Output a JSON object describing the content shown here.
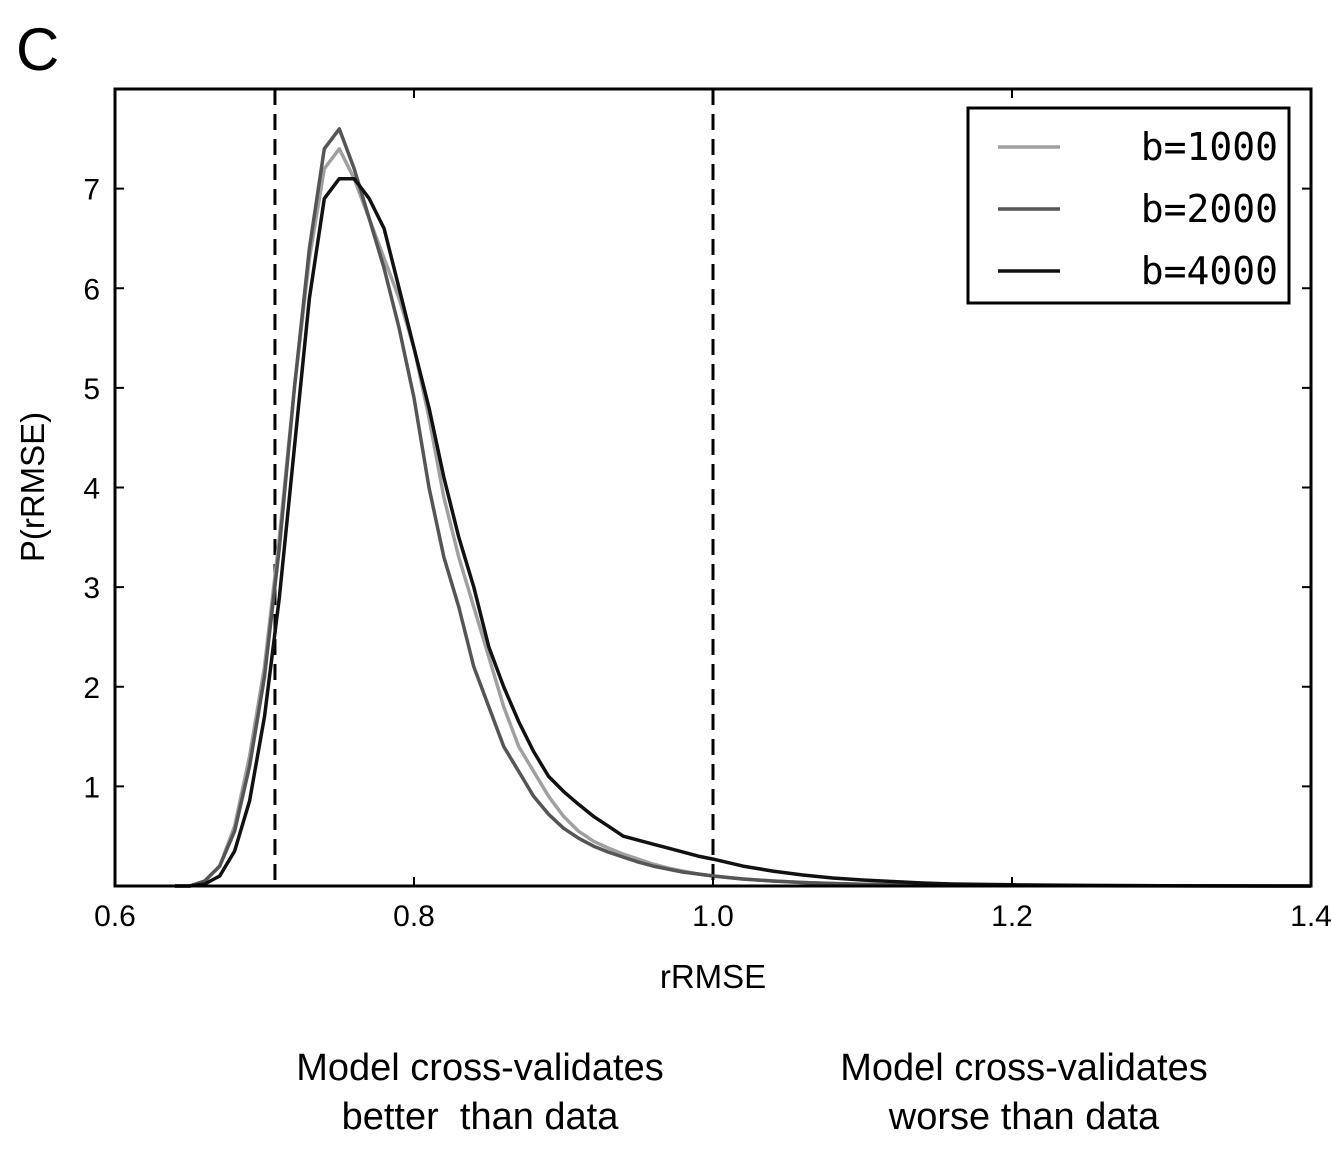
{
  "panel_label": "C",
  "notes": {
    "left": [
      "Model cross-validates",
      "better  than data"
    ],
    "right": [
      "Model cross-validates",
      "worse than data"
    ]
  },
  "chart_data": {
    "type": "line",
    "title": "",
    "xlabel": "rRMSE",
    "ylabel": "P(rRMSE)",
    "xlim": [
      0.6,
      1.4
    ],
    "ylim": [
      0,
      8
    ],
    "xticks": [
      0.6,
      0.8,
      1.0,
      1.2,
      1.4
    ],
    "xtick_labels": [
      "0.6",
      "0.8",
      "1.0",
      "1.2",
      "1.4"
    ],
    "yticks": [
      1,
      2,
      3,
      4,
      5,
      6,
      7
    ],
    "ytick_labels": [
      "1",
      "2",
      "3",
      "4",
      "5",
      "6",
      "7"
    ],
    "grid": false,
    "legend_position": "top-right",
    "vlines": [
      0.707,
      1.0
    ],
    "series": [
      {
        "name": "b=1000",
        "color": "#a0a0a0",
        "x": [
          0.64,
          0.65,
          0.66,
          0.67,
          0.68,
          0.69,
          0.7,
          0.71,
          0.72,
          0.73,
          0.74,
          0.75,
          0.76,
          0.77,
          0.78,
          0.79,
          0.8,
          0.81,
          0.82,
          0.83,
          0.84,
          0.85,
          0.86,
          0.87,
          0.88,
          0.89,
          0.9,
          0.91,
          0.92,
          0.93,
          0.94,
          0.95,
          0.96,
          0.97,
          0.98,
          0.99,
          1.0,
          1.02,
          1.04,
          1.06,
          1.08,
          1.1,
          1.12,
          1.14,
          1.16,
          1.2,
          1.25,
          1.3,
          1.35,
          1.4
        ],
        "y": [
          0.0,
          0.0,
          0.05,
          0.2,
          0.6,
          1.3,
          2.2,
          3.5,
          5.0,
          6.3,
          7.2,
          7.4,
          7.1,
          6.7,
          6.3,
          5.9,
          5.4,
          4.7,
          3.9,
          3.3,
          2.8,
          2.3,
          1.8,
          1.4,
          1.15,
          0.9,
          0.7,
          0.55,
          0.45,
          0.38,
          0.32,
          0.27,
          0.22,
          0.18,
          0.15,
          0.12,
          0.1,
          0.07,
          0.05,
          0.035,
          0.025,
          0.018,
          0.012,
          0.008,
          0.005,
          0.003,
          0.002,
          0.001,
          0.0,
          0.0
        ]
      },
      {
        "name": "b=2000",
        "color": "#555555",
        "x": [
          0.64,
          0.65,
          0.66,
          0.67,
          0.68,
          0.69,
          0.7,
          0.71,
          0.72,
          0.73,
          0.74,
          0.75,
          0.76,
          0.77,
          0.78,
          0.79,
          0.8,
          0.81,
          0.82,
          0.83,
          0.84,
          0.85,
          0.86,
          0.87,
          0.88,
          0.89,
          0.9,
          0.91,
          0.92,
          0.93,
          0.94,
          0.95,
          0.96,
          0.97,
          0.98,
          0.99,
          1.0,
          1.02,
          1.04,
          1.06,
          1.08,
          1.1,
          1.12,
          1.14,
          1.16,
          1.2,
          1.25,
          1.3,
          1.35,
          1.4
        ],
        "y": [
          0.0,
          0.0,
          0.05,
          0.2,
          0.55,
          1.2,
          2.1,
          3.4,
          5.0,
          6.4,
          7.4,
          7.6,
          7.2,
          6.7,
          6.2,
          5.6,
          4.9,
          4.0,
          3.3,
          2.8,
          2.2,
          1.8,
          1.4,
          1.15,
          0.9,
          0.72,
          0.58,
          0.48,
          0.4,
          0.34,
          0.29,
          0.24,
          0.2,
          0.17,
          0.14,
          0.12,
          0.1,
          0.07,
          0.05,
          0.035,
          0.025,
          0.018,
          0.012,
          0.008,
          0.005,
          0.003,
          0.002,
          0.001,
          0.0,
          0.0
        ]
      },
      {
        "name": "b=4000",
        "color": "#111111",
        "x": [
          0.64,
          0.65,
          0.66,
          0.67,
          0.68,
          0.69,
          0.7,
          0.71,
          0.72,
          0.73,
          0.74,
          0.75,
          0.76,
          0.77,
          0.78,
          0.79,
          0.8,
          0.81,
          0.82,
          0.83,
          0.84,
          0.85,
          0.86,
          0.87,
          0.88,
          0.89,
          0.9,
          0.91,
          0.92,
          0.93,
          0.94,
          0.95,
          0.96,
          0.97,
          0.98,
          0.99,
          1.0,
          1.02,
          1.04,
          1.06,
          1.08,
          1.1,
          1.12,
          1.14,
          1.16,
          1.2,
          1.25,
          1.3,
          1.35,
          1.4
        ],
        "y": [
          0.0,
          0.0,
          0.02,
          0.1,
          0.35,
          0.85,
          1.7,
          2.9,
          4.4,
          5.9,
          6.9,
          7.1,
          7.1,
          6.9,
          6.6,
          6.0,
          5.4,
          4.8,
          4.1,
          3.5,
          3.0,
          2.4,
          2.0,
          1.65,
          1.35,
          1.1,
          0.95,
          0.82,
          0.7,
          0.6,
          0.5,
          0.46,
          0.42,
          0.38,
          0.34,
          0.3,
          0.27,
          0.2,
          0.15,
          0.11,
          0.08,
          0.06,
          0.045,
          0.03,
          0.02,
          0.012,
          0.006,
          0.003,
          0.001,
          0.0
        ]
      }
    ]
  }
}
